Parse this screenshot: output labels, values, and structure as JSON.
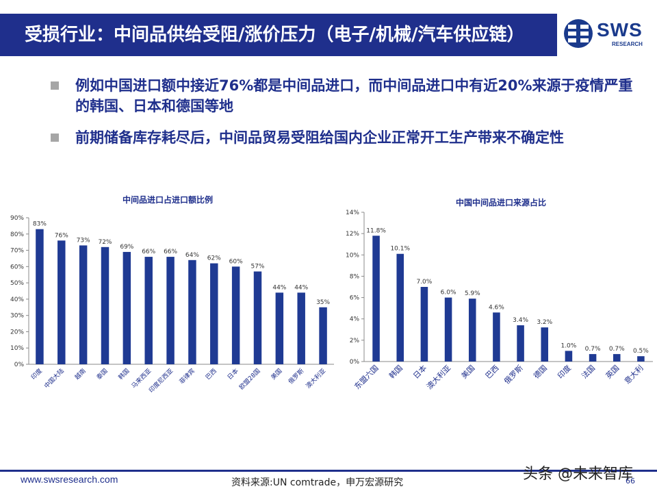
{
  "header": {
    "title": "受损行业：中间品供给受阻/涨价压力（电子/机械/汽车供应链）"
  },
  "logo": {
    "text": "SWS",
    "sub": "RESEARCH"
  },
  "bullets": [
    "例如中国进口额中接近76%都是中间品进口，而中间品进口中有近20%来源于疫情严重的韩国、日本和德国等地",
    "前期储备库存耗尽后，中间品贸易受阻给国内企业正常开工生产带来不确定性"
  ],
  "colors": {
    "header": "#1F2F8C",
    "bar": "#1F3A93",
    "bullet_text": "#1F2F8C"
  },
  "chart_data": [
    {
      "type": "bar",
      "title": "中间品进口占进口额比例",
      "categories": [
        "印度",
        "中国大陆",
        "越南",
        "泰国",
        "韩国",
        "马来西亚",
        "印度尼西亚",
        "菲律宾",
        "巴西",
        "日本",
        "欧盟28国",
        "美国",
        "俄罗斯",
        "澳大利亚"
      ],
      "values": [
        83,
        76,
        73,
        72,
        69,
        66,
        66,
        64,
        62,
        60,
        57,
        44,
        44,
        35
      ],
      "value_labels": [
        "83%",
        "76%",
        "73%",
        "72%",
        "69%",
        "66%",
        "66%",
        "64%",
        "62%",
        "60%",
        "57%",
        "44%",
        "44%",
        "35%"
      ],
      "ylim": [
        0,
        90
      ],
      "yticks": [
        "0%",
        "10%",
        "20%",
        "30%",
        "40%",
        "50%",
        "60%",
        "70%",
        "80%",
        "90%"
      ],
      "xlabel": "",
      "ylabel": "",
      "grid": false
    },
    {
      "type": "bar",
      "title": "中国中间品进口来源占比",
      "categories": [
        "东盟六国",
        "韩国",
        "日本",
        "澳大利亚",
        "美国",
        "巴西",
        "俄罗斯",
        "德国",
        "印度",
        "法国",
        "英国",
        "意大利"
      ],
      "values": [
        11.8,
        10.1,
        7.0,
        6.0,
        5.9,
        4.6,
        3.4,
        3.2,
        1.0,
        0.7,
        0.7,
        0.5
      ],
      "value_labels": [
        "11.8%",
        "10.1%",
        "7.0%",
        "6.0%",
        "5.9%",
        "4.6%",
        "3.4%",
        "3.2%",
        "1.0%",
        "0.7%",
        "0.7%",
        "0.5%"
      ],
      "ylim": [
        0,
        14
      ],
      "yticks": [
        "0%",
        "2%",
        "4%",
        "6%",
        "8%",
        "10%",
        "12%",
        "14%"
      ],
      "xlabel": "",
      "ylabel": "",
      "grid": false
    }
  ],
  "footer": {
    "url": "www.swsresearch.com",
    "source": "资料来源:UN comtrade，申万宏源研究",
    "page": "66",
    "watermark": "头条 @未来智库"
  }
}
